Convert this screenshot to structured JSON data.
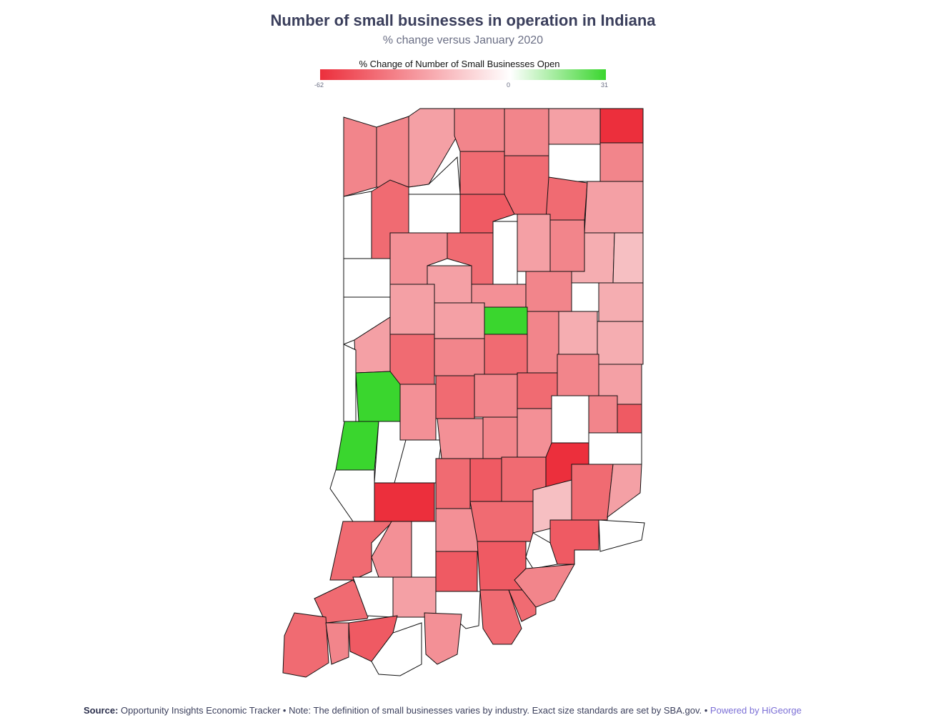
{
  "title": "Number of small businesses in operation in Indiana",
  "subtitle": "% change versus January 2020",
  "legend": {
    "title": "% Change of Number of Small Businesses Open",
    "min_label": "-62",
    "mid_label": "0",
    "max_label": "31",
    "colors": {
      "negative": "#ec2f3c",
      "neutral": "#ffffff",
      "positive": "#3ad62e"
    }
  },
  "footer": {
    "source_label": "Source:",
    "text": "Opportunity Insights Economic Tracker • Note: The definition of small businesses varies by industry. Exact size standards are set by SBA.gov. •",
    "brand": "Powered by HiGeorge"
  },
  "chart_data": {
    "type": "choropleth",
    "region": "Indiana counties",
    "scale": {
      "min": -62,
      "mid": 0,
      "max": 31
    }
  }
}
